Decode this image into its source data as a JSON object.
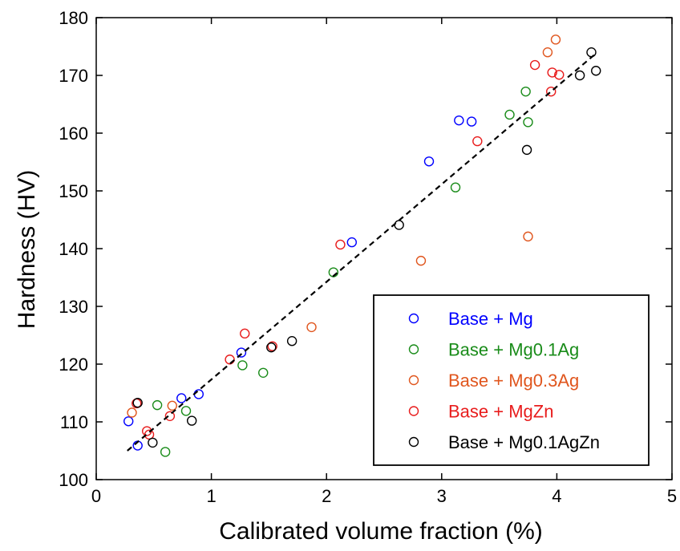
{
  "chart_data": {
    "type": "scatter",
    "xlabel": "Calibrated volume fraction (%)",
    "ylabel": "Hardness (HV)",
    "xlim": [
      0,
      5
    ],
    "ylim": [
      100,
      180
    ],
    "xticks": [
      "0",
      "1",
      "2",
      "3",
      "4",
      "5"
    ],
    "yticks": [
      "100",
      "110",
      "120",
      "130",
      "140",
      "150",
      "160",
      "170",
      "180"
    ],
    "grid": false,
    "legend_position": "bottom-right",
    "series": [
      {
        "name": "Base + Mg",
        "color": "#0000ff",
        "points": [
          [
            0.28,
            110.1
          ],
          [
            0.36,
            105.9
          ],
          [
            0.74,
            114.1
          ],
          [
            0.89,
            114.8
          ],
          [
            1.26,
            122.0
          ],
          [
            2.22,
            141.1
          ],
          [
            2.89,
            155.1
          ],
          [
            3.15,
            162.2
          ],
          [
            3.26,
            162.0
          ]
        ]
      },
      {
        "name": "Base + Mg0.1Ag",
        "color": "#1a8c1a",
        "points": [
          [
            0.53,
            112.9
          ],
          [
            0.6,
            104.8
          ],
          [
            0.78,
            111.9
          ],
          [
            1.27,
            119.8
          ],
          [
            1.45,
            118.5
          ],
          [
            2.06,
            135.9
          ],
          [
            3.12,
            150.6
          ],
          [
            3.59,
            163.2
          ],
          [
            3.73,
            167.2
          ],
          [
            3.75,
            161.9
          ]
        ]
      },
      {
        "name": "Base + Mg0.3Ag",
        "color": "#e0561e",
        "points": [
          [
            0.31,
            111.6
          ],
          [
            0.66,
            112.8
          ],
          [
            1.87,
            126.4
          ],
          [
            2.82,
            137.9
          ],
          [
            3.75,
            142.1
          ],
          [
            3.92,
            174.0
          ],
          [
            3.99,
            176.2
          ]
        ]
      },
      {
        "name": "Base + MgZn",
        "color": "#e81c1c",
        "points": [
          [
            0.35,
            113.2
          ],
          [
            0.44,
            108.4
          ],
          [
            0.46,
            107.8
          ],
          [
            0.64,
            111.0
          ],
          [
            1.16,
            120.8
          ],
          [
            1.29,
            125.3
          ],
          [
            1.53,
            123.1
          ],
          [
            2.12,
            140.7
          ],
          [
            3.31,
            158.6
          ],
          [
            3.81,
            171.8
          ],
          [
            3.95,
            167.2
          ],
          [
            3.96,
            170.5
          ],
          [
            4.02,
            170.1
          ]
        ]
      },
      {
        "name": "Base + Mg0.1AgZn",
        "color": "#000000",
        "points": [
          [
            0.36,
            113.3
          ],
          [
            0.49,
            106.4
          ],
          [
            0.83,
            110.2
          ],
          [
            1.52,
            122.9
          ],
          [
            1.7,
            124.0
          ],
          [
            2.63,
            144.1
          ],
          [
            3.74,
            157.1
          ],
          [
            4.2,
            170.0
          ],
          [
            4.3,
            174.0
          ],
          [
            4.34,
            170.8
          ]
        ]
      }
    ],
    "fit_line": {
      "style": "dashed",
      "color": "#000000",
      "x": [
        0.27,
        4.34
      ],
      "y": [
        105.0,
        173.8
      ]
    }
  }
}
